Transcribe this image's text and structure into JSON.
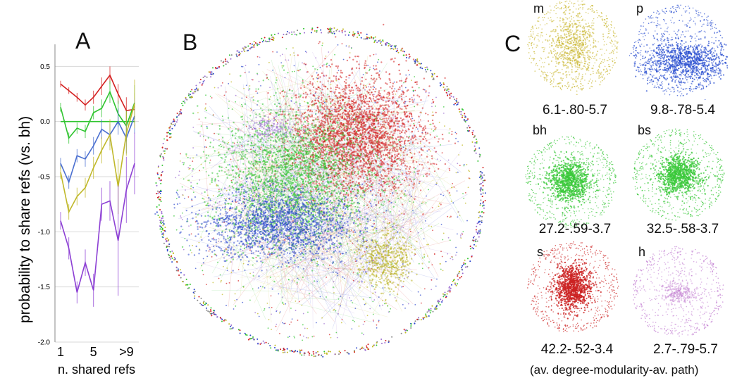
{
  "panels": {
    "a": "A",
    "b": "B",
    "c": "C"
  },
  "chart_data": {
    "type": "line",
    "ylabel": "probability to share refs  (vs. bh)",
    "xlabel": "n. shared refs",
    "ylim": [
      -2.0,
      0.7
    ],
    "yticks": [
      "0.5",
      "0.0",
      "-0.5",
      "-1.0",
      "-1.5",
      "-2.0"
    ],
    "ytick_values": [
      0.5,
      0.0,
      -0.5,
      -1.0,
      -1.5,
      -2.0
    ],
    "xticks": [
      "1",
      "5",
      ">9"
    ],
    "xtick_values": [
      1,
      5,
      9
    ],
    "grid": true,
    "x": [
      1,
      2,
      3,
      4,
      5,
      6,
      7,
      8,
      9,
      10
    ],
    "series": [
      {
        "color": "#d42020",
        "values": [
          0.34,
          0.28,
          0.22,
          0.15,
          0.22,
          0.32,
          0.42,
          0.25,
          0.1,
          0.11
        ],
        "err": [
          0.03,
          0.03,
          0.04,
          0.05,
          0.06,
          0.08,
          0.08,
          0.09,
          0.12,
          0.15
        ]
      },
      {
        "color": "#2fc42f",
        "values": [
          0.13,
          -0.15,
          -0.06,
          -0.09,
          0.08,
          0.12,
          0.27,
          0.07,
          -0.04,
          0.17
        ],
        "err": [
          0.04,
          0.05,
          0.05,
          0.06,
          0.06,
          0.08,
          0.1,
          0.12,
          0.14,
          0.16
        ]
      },
      {
        "color": "#2fc42f",
        "values": [
          0.0,
          0.0,
          0.0,
          0.0,
          0.0,
          0.0,
          0.0,
          0.0,
          0.0,
          0.0
        ]
      },
      {
        "color": "#4a6fd0",
        "values": [
          -0.38,
          -0.55,
          -0.31,
          -0.34,
          -0.22,
          -0.07,
          -0.12,
          0.0,
          -0.15,
          0.05
        ],
        "err": [
          0.05,
          0.06,
          0.06,
          0.07,
          0.08,
          0.09,
          0.1,
          0.12,
          0.14,
          0.16
        ]
      },
      {
        "color": "#c0b82a",
        "values": [
          -0.46,
          -0.82,
          -0.68,
          -0.6,
          -0.42,
          -0.26,
          -0.12,
          -0.59,
          -0.11,
          0.16
        ],
        "err": [
          0.06,
          0.07,
          0.08,
          0.09,
          0.1,
          0.12,
          0.14,
          0.25,
          0.2,
          0.22
        ]
      },
      {
        "color": "#8c3fd4",
        "values": [
          -0.9,
          -1.15,
          -1.55,
          -1.28,
          -1.53,
          -0.75,
          -0.72,
          -1.08,
          -0.62,
          -0.38
        ],
        "err": [
          0.08,
          0.1,
          0.1,
          0.12,
          0.15,
          0.15,
          0.18,
          0.5,
          0.3,
          0.28
        ]
      }
    ]
  },
  "networks": [
    {
      "tag": "m",
      "caption": "6.1-.80-5.7",
      "color": "#c8b52a"
    },
    {
      "tag": "p",
      "caption": "9.8-.78-5.4",
      "color": "#2a4fd0"
    },
    {
      "tag": "bh",
      "caption": "27.2-.59-3.7",
      "color": "#38c838"
    },
    {
      "tag": "bs",
      "caption": "32.5-.58-3.7",
      "color": "#38c838"
    },
    {
      "tag": "s",
      "caption": "42.2-.52-3.4",
      "color": "#cc2222"
    },
    {
      "tag": "h",
      "caption": "2.7-.79-5.7",
      "color": "#c07ad0"
    }
  ],
  "footnote": "(av. degree-modularity-av. path)"
}
